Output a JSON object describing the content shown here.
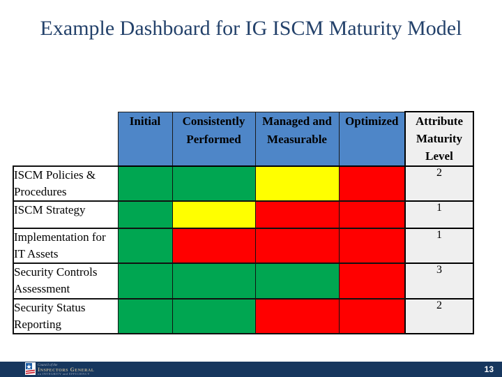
{
  "title": "Example Dashboard for IG ISCM Maturity Model",
  "colors": {
    "title": "#24426B",
    "header_blue": "#4E86C8",
    "green": "#00A651",
    "yellow": "#FFFF00",
    "red": "#FF0000",
    "attr_bg": "#EFEFEF",
    "footer_navy": "#17375E"
  },
  "table": {
    "columns": [
      "Initial",
      "Consistently Performed",
      "Managed and Measurable",
      "Optimized"
    ],
    "attr_header": "Attribute Maturity Level",
    "rows": [
      {
        "label": "ISCM Policies & Procedures",
        "cells": [
          "green",
          "green",
          "yellow",
          "red"
        ],
        "level": "2"
      },
      {
        "label": "ISCM Strategy",
        "cells": [
          "green",
          "yellow",
          "red",
          "red"
        ],
        "level": "1"
      },
      {
        "label": "Implementation for IT Assets",
        "cells": [
          "green",
          "red",
          "red",
          "red"
        ],
        "level": "1"
      },
      {
        "label": "Security Controls Assessment",
        "cells": [
          "green",
          "green",
          "green",
          "red"
        ],
        "level": "3"
      },
      {
        "label": "Security Status Reporting",
        "cells": [
          "green",
          "green",
          "red",
          "red"
        ],
        "level": "2"
      }
    ]
  },
  "chart_data": {
    "type": "heatmap",
    "title": "Example Dashboard for IG ISCM Maturity Model",
    "x_categories": [
      "Initial",
      "Consistently Performed",
      "Managed and Measurable",
      "Optimized"
    ],
    "y_categories": [
      "ISCM Policies & Procedures",
      "ISCM Strategy",
      "Implementation for IT Assets",
      "Security Controls Assessment",
      "Security Status Reporting"
    ],
    "cell_status": [
      [
        "green",
        "green",
        "yellow",
        "red"
      ],
      [
        "green",
        "yellow",
        "red",
        "red"
      ],
      [
        "green",
        "red",
        "red",
        "red"
      ],
      [
        "green",
        "green",
        "green",
        "red"
      ],
      [
        "green",
        "green",
        "red",
        "red"
      ]
    ],
    "attribute_maturity_levels": [
      2,
      1,
      1,
      3,
      2
    ],
    "status_colors": {
      "green": "#00A651",
      "yellow": "#FFFF00",
      "red": "#FF0000"
    }
  },
  "footer": {
    "page_number": "13",
    "logo": {
      "line1": "Council of the",
      "line2": "Inspectors General",
      "line3": "on INTEGRITY and EFFICIENCY"
    }
  }
}
